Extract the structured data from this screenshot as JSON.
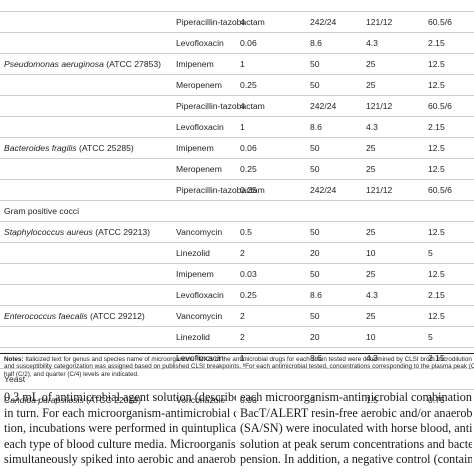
{
  "table": {
    "rows": [
      {
        "type": "data",
        "organism": "",
        "agent": "",
        "v1": "",
        "v2": "",
        "v3": "",
        "v4": ""
      },
      {
        "type": "data",
        "organism": "",
        "agent": "Piperacillin-tazobactam",
        "v1": "4",
        "v2": "242/24",
        "v3": "121/12",
        "v4": "60.5/6"
      },
      {
        "type": "data",
        "organism": "",
        "agent": "Levofloxacin",
        "v1": "0.06",
        "v2": "8.6",
        "v3": "4.3",
        "v4": "2.15"
      },
      {
        "type": "data",
        "organism": "Pseudomonas aeruginosa",
        "strain": "(ATCC 27853)",
        "agent": "Imipenem",
        "v1": "1",
        "v2": "50",
        "v3": "25",
        "v4": "12.5"
      },
      {
        "type": "data",
        "organism": "",
        "agent": "Meropenem",
        "v1": "0.25",
        "v2": "50",
        "v3": "25",
        "v4": "12.5"
      },
      {
        "type": "data",
        "organism": "",
        "agent": "Piperacillin-tazobactam",
        "v1": "4",
        "v2": "242/24",
        "v3": "121/12",
        "v4": "60.5/6"
      },
      {
        "type": "data",
        "organism": "",
        "agent": "Levofloxacin",
        "v1": "1",
        "v2": "8.6",
        "v3": "4.3",
        "v4": "2.15"
      },
      {
        "type": "data",
        "organism": "Bacteroides fragilis",
        "strain": "(ATCC 25285)",
        "agent": "Imipenem",
        "v1": "0.06",
        "v2": "50",
        "v3": "25",
        "v4": "12.5"
      },
      {
        "type": "data",
        "organism": "",
        "agent": "Meropenem",
        "v1": "0.25",
        "v2": "50",
        "v3": "25",
        "v4": "12.5"
      },
      {
        "type": "data",
        "organism": "",
        "agent": "Piperacillin-tazobactam",
        "v1": "0.25",
        "v2": "242/24",
        "v3": "121/12",
        "v4": "60.5/6"
      },
      {
        "type": "group",
        "label": "Gram positive cocci"
      },
      {
        "type": "data",
        "organism": "Staphylococcus aureus",
        "strain": "(ATCC 29213)",
        "agent": "Vancomycin",
        "v1": "0.5",
        "v2": "50",
        "v3": "25",
        "v4": "12.5"
      },
      {
        "type": "data",
        "organism": "",
        "agent": "Linezolid",
        "v1": "2",
        "v2": "20",
        "v3": "10",
        "v4": "5"
      },
      {
        "type": "data",
        "organism": "",
        "agent": "Imipenem",
        "v1": "0.03",
        "v2": "50",
        "v3": "25",
        "v4": "12.5"
      },
      {
        "type": "data",
        "organism": "",
        "agent": "Levofloxacin",
        "v1": "0.25",
        "v2": "8.6",
        "v3": "4.3",
        "v4": "2.15"
      },
      {
        "type": "data",
        "organism": "Enterococcus faecalis",
        "strain": "(ATCC 29212)",
        "agent": "Vancomycin",
        "v1": "2",
        "v2": "50",
        "v3": "25",
        "v4": "12.5"
      },
      {
        "type": "data",
        "organism": "",
        "agent": "Linezolid",
        "v1": "2",
        "v2": "20",
        "v3": "10",
        "v4": "5"
      },
      {
        "type": "data",
        "organism": "",
        "agent": "Levofloxacin",
        "v1": "1",
        "v2": "8.6",
        "v3": "4.3",
        "v4": "2.15"
      },
      {
        "type": "group",
        "label": "Yeast"
      },
      {
        "type": "data",
        "organism": "Candida parapsilosis",
        "strain": "(ATCC 22019)",
        "agent": "Voriconazole",
        "v1": "0.03",
        "v2": "3",
        "v3": "1.5",
        "v4": "0.75"
      }
    ]
  },
  "notes": {
    "label": "Notes:",
    "lines": [
      " Italicized text for genus and species name of microorganism. ᵃMICs of the antimicrobial drugs for each strain tested were determined by CLSI broth microdilution",
      "and susceptibility categorization was assigned based on published CLSI breakpoints. ᵇFor each antimicrobial tested, concentrations corresponding to the plasma peak (Cₘₐₓ),",
      "half (C/2), and quarter (C/4) levels are indicated."
    ]
  },
  "body": {
    "left_lines": [
      "0.3 mL of antimicrobial agent solution (described above)",
      "in turn. For each microorganism-antimicrobial combina-",
      "tion, incubations were performed in quintuplicate for",
      "each type of blood culture media. Microorganisms were",
      "simultaneously spiked into aerobic and anaerobic bottles"
    ],
    "right_lines": [
      "each microorganism-antimicrobial combination, triplicate",
      "BacT/ALERT resin-free aerobic and/or anaerobic bottles",
      "(SA/SN) were inoculated with horse blood, antimicrobial",
      "solution at peak serum concentrations and bacterial sus-",
      "pension. In addition, a negative control (containing onl"
    ]
  }
}
